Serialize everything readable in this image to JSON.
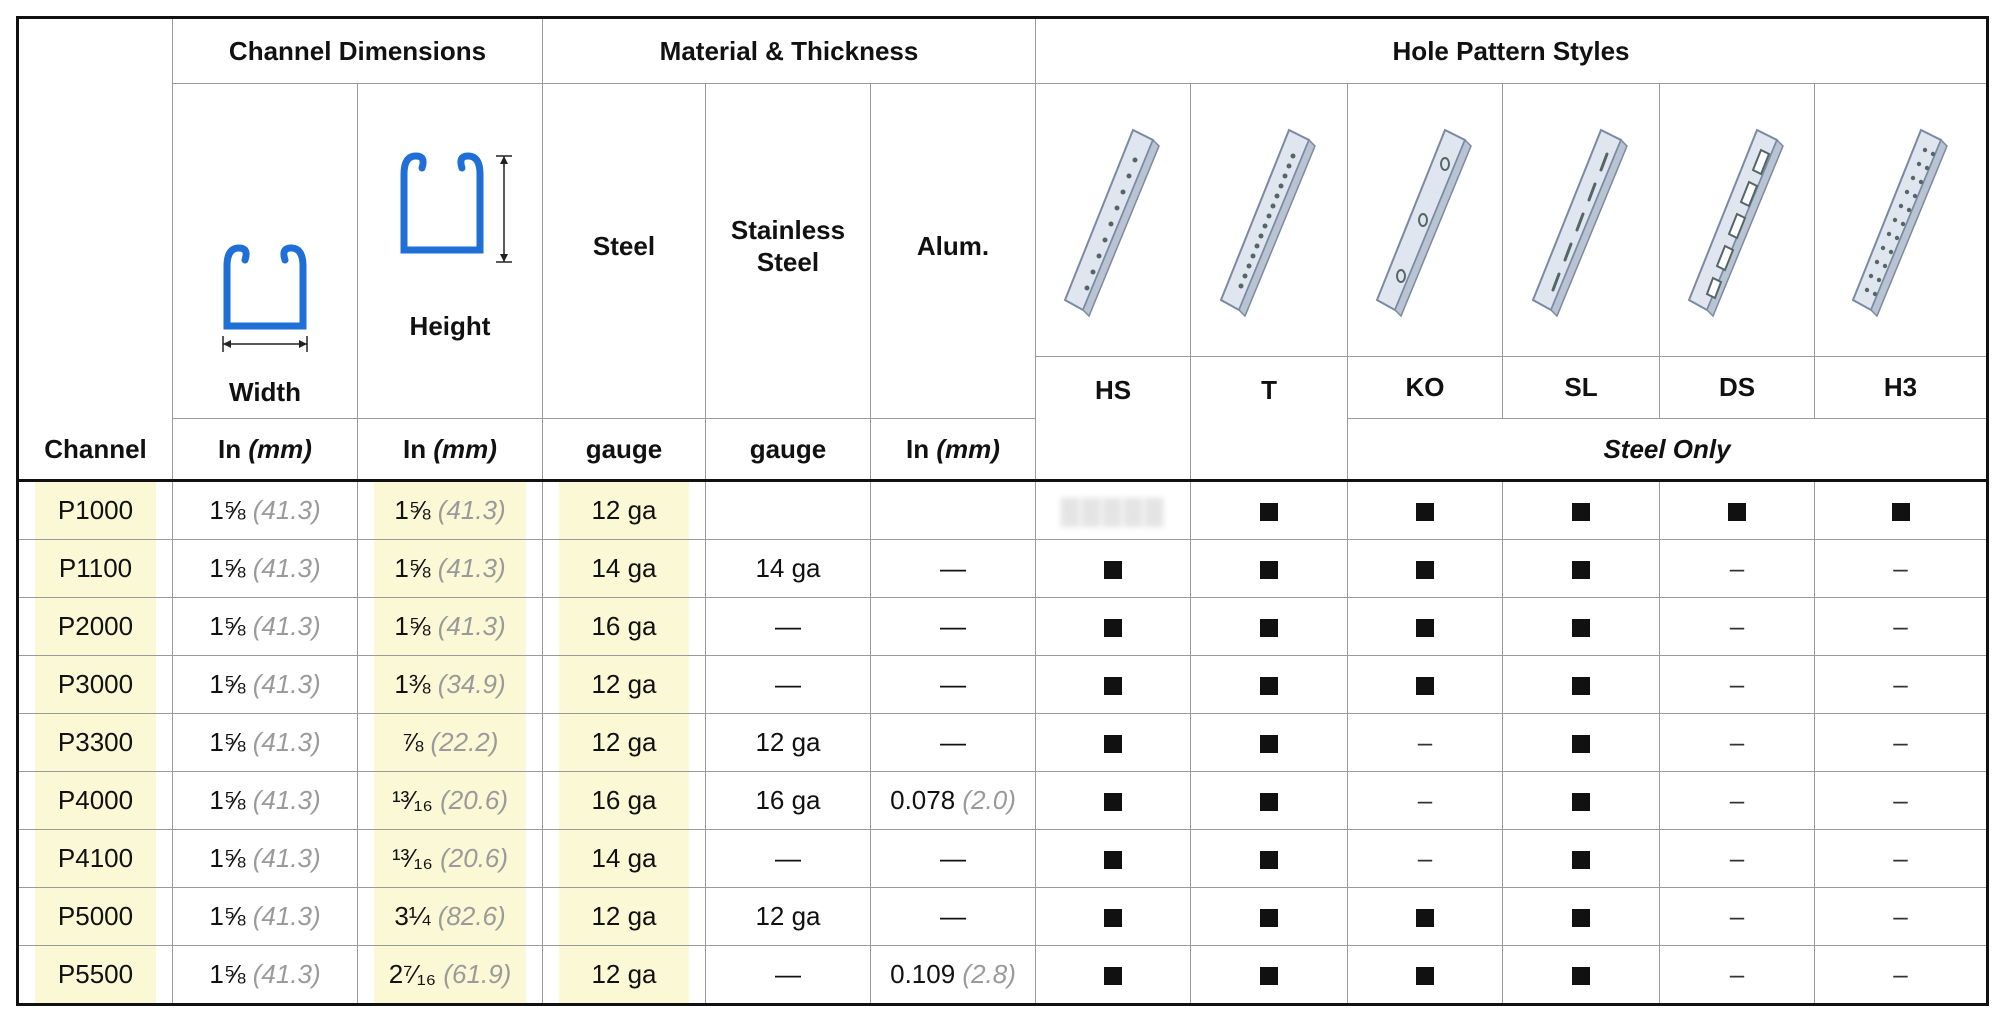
{
  "headers": {
    "channel_dimensions": "Channel Dimensions",
    "material_thickness": "Material & Thickness",
    "hole_pattern_styles": "Hole Pattern Styles",
    "channel": "Channel",
    "width": "Width",
    "height": "Height",
    "steel": "Steel",
    "stainless_steel_line1": "Stainless",
    "stainless_steel_line2": "Steel",
    "alum": "Alum.",
    "unit_in": "In",
    "unit_mm": "(mm)",
    "gauge": "gauge",
    "steel_only": "Steel Only",
    "hole_codes": [
      "HS",
      "T",
      "KO",
      "SL",
      "DS",
      "H3"
    ]
  },
  "rows": [
    {
      "channel": "P1000",
      "width": "1⅝",
      "width_mm": "(41.3)",
      "height": "1⅝",
      "height_mm": "(41.3)",
      "steel": "12 ga",
      "stainless": "",
      "alum": "",
      "alum_mm": "",
      "holes": [
        "blur",
        "■",
        "■",
        "■",
        "■",
        "■"
      ]
    },
    {
      "channel": "P1100",
      "width": "1⅝",
      "width_mm": "(41.3)",
      "height": "1⅝",
      "height_mm": "(41.3)",
      "steel": "14 ga",
      "stainless": "14 ga",
      "alum": "—",
      "alum_mm": "",
      "holes": [
        "■",
        "■",
        "■",
        "■",
        "–",
        "–"
      ]
    },
    {
      "channel": "P2000",
      "width": "1⅝",
      "width_mm": "(41.3)",
      "height": "1⅝",
      "height_mm": "(41.3)",
      "steel": "16 ga",
      "stainless": "—",
      "alum": "—",
      "alum_mm": "",
      "holes": [
        "■",
        "■",
        "■",
        "■",
        "–",
        "–"
      ]
    },
    {
      "channel": "P3000",
      "width": "1⅝",
      "width_mm": "(41.3)",
      "height": "1⅜",
      "height_mm": "(34.9)",
      "steel": "12 ga",
      "stainless": "—",
      "alum": "—",
      "alum_mm": "",
      "holes": [
        "■",
        "■",
        "■",
        "■",
        "–",
        "–"
      ]
    },
    {
      "channel": "P3300",
      "width": "1⅝",
      "width_mm": "(41.3)",
      "height": "⅞",
      "height_mm": "(22.2)",
      "steel": "12 ga",
      "stainless": "12 ga",
      "alum": "—",
      "alum_mm": "",
      "holes": [
        "■",
        "■",
        "–",
        "■",
        "–",
        "–"
      ]
    },
    {
      "channel": "P4000",
      "width": "1⅝",
      "width_mm": "(41.3)",
      "height": "¹³⁄₁₆",
      "height_mm": "(20.6)",
      "steel": "16 ga",
      "stainless": "16 ga",
      "alum": "0.078",
      "alum_mm": "(2.0)",
      "holes": [
        "■",
        "■",
        "–",
        "■",
        "–",
        "–"
      ]
    },
    {
      "channel": "P4100",
      "width": "1⅝",
      "width_mm": "(41.3)",
      "height": "¹³⁄₁₆",
      "height_mm": "(20.6)",
      "steel": "14 ga",
      "stainless": "—",
      "alum": "—",
      "alum_mm": "",
      "holes": [
        "■",
        "■",
        "–",
        "■",
        "–",
        "–"
      ]
    },
    {
      "channel": "P5000",
      "width": "1⅝",
      "width_mm": "(41.3)",
      "height": "3¼",
      "height_mm": "(82.6)",
      "steel": "12 ga",
      "stainless": "12 ga",
      "alum": "—",
      "alum_mm": "",
      "holes": [
        "■",
        "■",
        "■",
        "■",
        "–",
        "–"
      ]
    },
    {
      "channel": "P5500",
      "width": "1⅝",
      "width_mm": "(41.3)",
      "height": "2⁷⁄₁₆",
      "height_mm": "(61.9)",
      "steel": "12 ga",
      "stainless": "—",
      "alum": "0.109",
      "alum_mm": "(2.8)",
      "holes": [
        "■",
        "■",
        "■",
        "■",
        "–",
        "–"
      ]
    }
  ],
  "colors": {
    "highlight": "#fbf8d6",
    "channel_blue": "#1f6fd6",
    "mm_gray": "#9a9a9a"
  },
  "icons": {
    "width_diagram": "channel-width-diagram-icon",
    "height_diagram": "channel-height-diagram-icon",
    "hole_images": [
      "hs-channel-icon",
      "t-channel-icon",
      "ko-channel-icon",
      "sl-channel-icon",
      "ds-channel-icon",
      "h3-channel-icon"
    ]
  }
}
